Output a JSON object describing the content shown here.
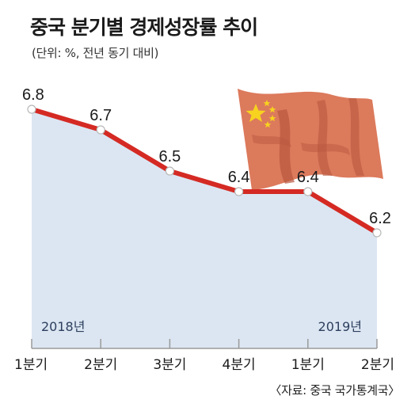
{
  "chart_data": {
    "type": "area",
    "title": "중국 분기별 경제성장률 추이",
    "subtitle": "(단위: %, 전년 동기 대비)",
    "categories": [
      "1분기",
      "2분기",
      "3분기",
      "4분기",
      "1분기",
      "2분기"
    ],
    "values": [
      6.8,
      6.7,
      6.5,
      6.4,
      6.4,
      6.2
    ],
    "value_labels": [
      "6.8",
      "6.7",
      "6.5",
      "6.4",
      "6.4",
      "6.2"
    ],
    "year_labels": [
      "2018년",
      "2019년"
    ],
    "source": "〈자료: 중국 국가통계국〉",
    "ylim": [
      5.8,
      6.8
    ],
    "grid": false,
    "colors": {
      "line": "#d42a23",
      "area": "#dce6f2",
      "marker": "#ffffff",
      "flag": "#dc7a5c",
      "flag_dark": "#b8573e",
      "star": "#f7d21f"
    }
  }
}
